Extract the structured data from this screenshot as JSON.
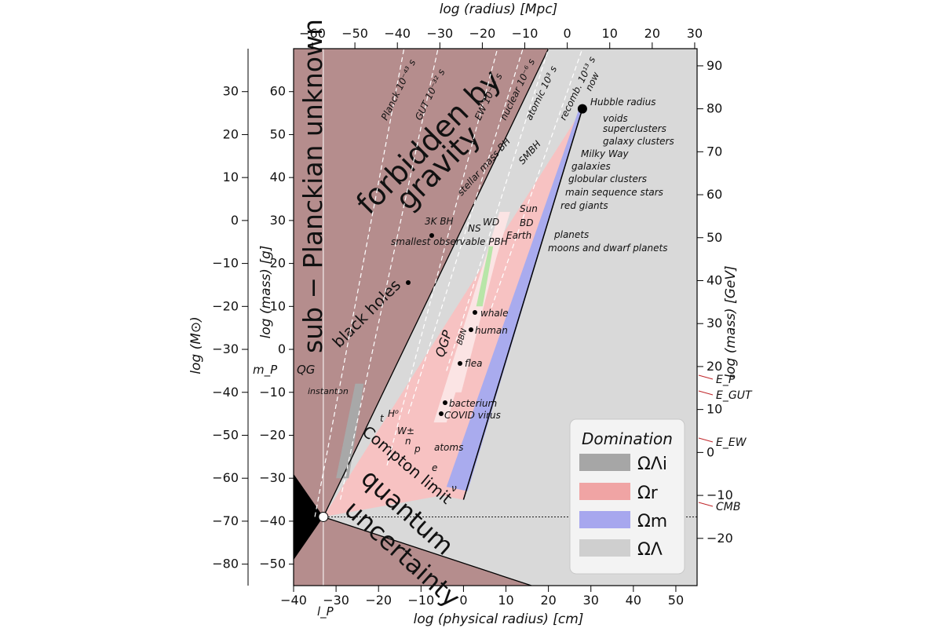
{
  "chart_data": {
    "type": "region-diagram",
    "xlabel_bottom": "log (physical radius) [cm]",
    "xlabel_top": "log (radius) [Mpc]",
    "ylabel_left_inner": "log (mass) [g]",
    "ylabel_left_outer": "log (M⊙)",
    "ylabel_right": "log (mass) [GeV]",
    "xlim": [
      -40,
      55
    ],
    "ylim": [
      -55,
      70
    ],
    "x_ticks": [
      "−40",
      "−30",
      "−20",
      "−10",
      "0",
      "10",
      "20",
      "30",
      "40",
      "50"
    ],
    "top_ticks": [
      "−60",
      "−50",
      "−40",
      "−30",
      "−20",
      "−10",
      "0",
      "10",
      "20",
      "30"
    ],
    "left_inner_ticks": [
      "−50",
      "−40",
      "−30",
      "−20",
      "−10",
      "0",
      "10",
      "20",
      "30",
      "40",
      "50",
      "60"
    ],
    "left_outer_ticks": [
      "−80",
      "−70",
      "−60",
      "−50",
      "−40",
      "−30",
      "−20",
      "−10",
      "0",
      "10",
      "20",
      "30"
    ],
    "right_ticks": [
      "−20",
      "−10",
      "0",
      "10",
      "20",
      "30",
      "40",
      "50",
      "60",
      "70",
      "80",
      "90"
    ],
    "regions": {
      "planckian": "sub − Planckian unknown",
      "gravity_line1": "forbidden by",
      "gravity_line2": "gravity",
      "quantum_line1": "quantum",
      "quantum_line2": "uncertainty",
      "black_holes": "black holes",
      "compton": "Compton limit",
      "qg": "QG",
      "instanton": "instanton",
      "qgp": "QGP",
      "bbn": "BBN"
    },
    "epochs": [
      {
        "label": "Planck 10⁻⁴³ s"
      },
      {
        "label": "GUT 10⁻³² s"
      },
      {
        "label": "EW 10⁻¹¹ s"
      },
      {
        "label": "nuclear 10⁻⁶ s"
      },
      {
        "label": "atomic 10³ s"
      },
      {
        "label": "recomb. 10¹³ s"
      },
      {
        "label": "now"
      }
    ],
    "objects": [
      {
        "name": "Hubble radius",
        "x": 28,
        "y": 56
      },
      {
        "name": "voids",
        "x": 27,
        "y": 52
      },
      {
        "name": "superclusters",
        "x": 26,
        "y": 50
      },
      {
        "name": "galaxy clusters",
        "x": 25,
        "y": 48
      },
      {
        "name": "Milky Way",
        "x": 23,
        "y": 45
      },
      {
        "name": "galaxies",
        "x": 22,
        "y": 42
      },
      {
        "name": "globular clusters",
        "x": 19,
        "y": 39
      },
      {
        "name": "main sequence stars",
        "x": 11,
        "y": 34
      },
      {
        "name": "red giants",
        "x": 13,
        "y": 33
      },
      {
        "name": "Sun",
        "x": 11,
        "y": 33
      },
      {
        "name": "BD",
        "x": 10,
        "y": 31
      },
      {
        "name": "planets",
        "x": 9,
        "y": 29
      },
      {
        "name": "Earth",
        "x": 9,
        "y": 28
      },
      {
        "name": "moons and dwarf planets",
        "x": 8,
        "y": 25
      },
      {
        "name": "WD",
        "x": 9,
        "y": 33
      },
      {
        "name": "NS",
        "x": 6,
        "y": 33
      },
      {
        "name": "3K BH",
        "x": -5,
        "y": 26
      },
      {
        "name": "stellar mass BH",
        "x": 6,
        "y": 34
      },
      {
        "name": "SMBH",
        "x": 15,
        "y": 42
      },
      {
        "name": "smallest observable PBH",
        "x": -15,
        "y": 15
      },
      {
        "name": "whale",
        "x": 3,
        "y": 8
      },
      {
        "name": "human",
        "x": 2,
        "y": 5
      },
      {
        "name": "flea",
        "x": -1,
        "y": -2
      },
      {
        "name": "bacterium",
        "x": -5,
        "y": -12
      },
      {
        "name": "COVID virus",
        "x": -5,
        "y": -14
      },
      {
        "name": "atoms",
        "x": -8,
        "y": -22
      },
      {
        "name": "t",
        "x": -14,
        "y": -16
      },
      {
        "name": "H⁰",
        "x": -14,
        "y": -16
      },
      {
        "name": "W±",
        "x": -14,
        "y": -17
      },
      {
        "name": "n",
        "x": -14,
        "y": -19
      },
      {
        "name": "p",
        "x": -13,
        "y": -19
      },
      {
        "name": "e",
        "x": -11,
        "y": -27
      },
      {
        "name": "ν",
        "x": -5,
        "y": -33
      }
    ],
    "planck_markers": {
      "mass": "m_P",
      "length": "l_P"
    },
    "energy_labels": [
      {
        "label": "E_P",
        "gev": 19
      },
      {
        "label": "E_GUT",
        "gev": 16
      },
      {
        "label": "E_EW",
        "gev": 2
      },
      {
        "label": "CMB",
        "gev": -12.6
      }
    ],
    "legend": {
      "title": "Domination",
      "placement": "bottom-right",
      "entries": [
        {
          "label": "ΩΛi",
          "color": "#a6a6a6"
        },
        {
          "label": "Ωr",
          "color": "#f0a4a4"
        },
        {
          "label": "Ωm",
          "color": "#a7a7ee"
        },
        {
          "label": "ΩΛ",
          "color": "#cfcfcf"
        }
      ]
    },
    "colors": {
      "forbidden": "#b58d8d",
      "radiation": "#f7c2c2",
      "matter": "#a9abee",
      "lambda": "#d9d9d9",
      "inflation": "#a8a8a8",
      "annotation_red": "#c0262a"
    }
  }
}
